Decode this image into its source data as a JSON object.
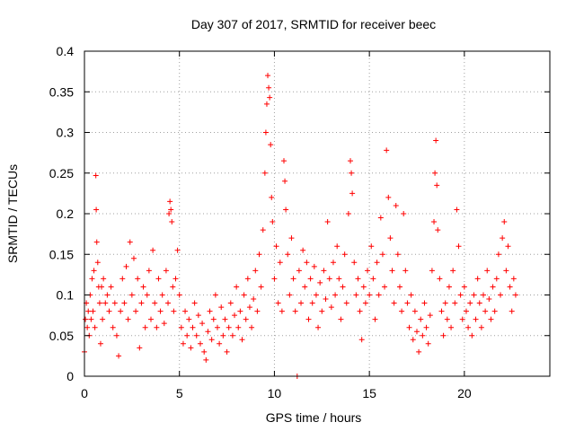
{
  "chart_data": {
    "type": "scatter",
    "title": "Day 307 of 2017, SRMTID for receiver beec",
    "xlabel": "GPS time / hours",
    "ylabel": "SRMTID / TECUs",
    "xlim": [
      0,
      24.5
    ],
    "ylim": [
      0,
      0.4
    ],
    "xticks": [
      0,
      5,
      10,
      15,
      20
    ],
    "xtick_labels": [
      "0",
      "5",
      "10",
      "15",
      "20"
    ],
    "yticks": [
      0,
      0.05,
      0.1,
      0.15,
      0.2,
      0.25,
      0.3,
      0.35,
      0.4
    ],
    "ytick_labels": [
      "0",
      "0.05",
      "0.1",
      "0.15",
      "0.2",
      "0.25",
      "0.3",
      "0.35",
      "0.4"
    ],
    "grid": true,
    "marker": "plus",
    "color": "#ff0000",
    "series": [
      {
        "name": "SRMTID",
        "points": [
          [
            0.0,
            0.03
          ],
          [
            0.05,
            0.07
          ],
          [
            0.1,
            0.09
          ],
          [
            0.15,
            0.06
          ],
          [
            0.2,
            0.08
          ],
          [
            0.25,
            0.05
          ],
          [
            0.3,
            0.1
          ],
          [
            0.35,
            0.07
          ],
          [
            0.4,
            0.12
          ],
          [
            0.45,
            0.08
          ],
          [
            0.5,
            0.13
          ],
          [
            0.55,
            0.06
          ],
          [
            0.6,
            0.247
          ],
          [
            0.62,
            0.205
          ],
          [
            0.65,
            0.165
          ],
          [
            0.7,
            0.14
          ],
          [
            0.75,
            0.11
          ],
          [
            0.8,
            0.09
          ],
          [
            0.85,
            0.04
          ],
          [
            0.9,
            0.11
          ],
          [
            0.95,
            0.07
          ],
          [
            1.0,
            0.12
          ],
          [
            1.1,
            0.09
          ],
          [
            1.2,
            0.1
          ],
          [
            1.3,
            0.08
          ],
          [
            1.4,
            0.11
          ],
          [
            1.5,
            0.06
          ],
          [
            1.6,
            0.09
          ],
          [
            1.7,
            0.05
          ],
          [
            1.8,
            0.025
          ],
          [
            1.9,
            0.08
          ],
          [
            2.0,
            0.12
          ],
          [
            2.1,
            0.09
          ],
          [
            2.2,
            0.135
          ],
          [
            2.3,
            0.07
          ],
          [
            2.4,
            0.165
          ],
          [
            2.5,
            0.1
          ],
          [
            2.6,
            0.145
          ],
          [
            2.7,
            0.08
          ],
          [
            2.8,
            0.12
          ],
          [
            2.9,
            0.035
          ],
          [
            3.0,
            0.09
          ],
          [
            3.1,
            0.11
          ],
          [
            3.2,
            0.06
          ],
          [
            3.3,
            0.1
          ],
          [
            3.4,
            0.13
          ],
          [
            3.5,
            0.07
          ],
          [
            3.6,
            0.155
          ],
          [
            3.7,
            0.09
          ],
          [
            3.8,
            0.06
          ],
          [
            3.9,
            0.12
          ],
          [
            4.0,
            0.08
          ],
          [
            4.1,
            0.1
          ],
          [
            4.2,
            0.065
          ],
          [
            4.3,
            0.13
          ],
          [
            4.4,
            0.09
          ],
          [
            4.45,
            0.2
          ],
          [
            4.5,
            0.215
          ],
          [
            4.55,
            0.205
          ],
          [
            4.6,
            0.19
          ],
          [
            4.65,
            0.11
          ],
          [
            4.7,
            0.08
          ],
          [
            4.8,
            0.12
          ],
          [
            4.9,
            0.155
          ],
          [
            5.0,
            0.1
          ],
          [
            5.1,
            0.06
          ],
          [
            5.2,
            0.04
          ],
          [
            5.3,
            0.08
          ],
          [
            5.4,
            0.05
          ],
          [
            5.5,
            0.07
          ],
          [
            5.6,
            0.035
          ],
          [
            5.7,
            0.06
          ],
          [
            5.8,
            0.09
          ],
          [
            5.9,
            0.05
          ],
          [
            6.0,
            0.075
          ],
          [
            6.1,
            0.04
          ],
          [
            6.2,
            0.065
          ],
          [
            6.3,
            0.03
          ],
          [
            6.4,
            0.02
          ],
          [
            6.5,
            0.055
          ],
          [
            6.6,
            0.08
          ],
          [
            6.7,
            0.045
          ],
          [
            6.8,
            0.07
          ],
          [
            6.9,
            0.1
          ],
          [
            7.0,
            0.06
          ],
          [
            7.1,
            0.04
          ],
          [
            7.2,
            0.085
          ],
          [
            7.3,
            0.05
          ],
          [
            7.4,
            0.07
          ],
          [
            7.5,
            0.03
          ],
          [
            7.6,
            0.06
          ],
          [
            7.7,
            0.09
          ],
          [
            7.8,
            0.05
          ],
          [
            7.9,
            0.075
          ],
          [
            8.0,
            0.11
          ],
          [
            8.1,
            0.06
          ],
          [
            8.2,
            0.08
          ],
          [
            8.3,
            0.045
          ],
          [
            8.4,
            0.1
          ],
          [
            8.5,
            0.07
          ],
          [
            8.6,
            0.12
          ],
          [
            8.7,
            0.085
          ],
          [
            8.8,
            0.06
          ],
          [
            8.9,
            0.095
          ],
          [
            9.0,
            0.13
          ],
          [
            9.1,
            0.08
          ],
          [
            9.2,
            0.15
          ],
          [
            9.3,
            0.11
          ],
          [
            9.4,
            0.18
          ],
          [
            9.5,
            0.25
          ],
          [
            9.55,
            0.3
          ],
          [
            9.6,
            0.335
          ],
          [
            9.65,
            0.37
          ],
          [
            9.7,
            0.355
          ],
          [
            9.75,
            0.343
          ],
          [
            9.8,
            0.285
          ],
          [
            9.85,
            0.22
          ],
          [
            9.9,
            0.19
          ],
          [
            10.0,
            0.12
          ],
          [
            10.1,
            0.16
          ],
          [
            10.2,
            0.09
          ],
          [
            10.3,
            0.14
          ],
          [
            10.4,
            0.08
          ],
          [
            10.5,
            0.265
          ],
          [
            10.55,
            0.24
          ],
          [
            10.6,
            0.205
          ],
          [
            10.7,
            0.15
          ],
          [
            10.8,
            0.1
          ],
          [
            10.9,
            0.17
          ],
          [
            11.0,
            0.12
          ],
          [
            11.1,
            0.08
          ],
          [
            11.2,
            0.0
          ],
          [
            11.3,
            0.13
          ],
          [
            11.4,
            0.09
          ],
          [
            11.5,
            0.155
          ],
          [
            11.6,
            0.11
          ],
          [
            11.7,
            0.14
          ],
          [
            11.8,
            0.07
          ],
          [
            11.9,
            0.12
          ],
          [
            12.0,
            0.09
          ],
          [
            12.1,
            0.135
          ],
          [
            12.2,
            0.1
          ],
          [
            12.3,
            0.06
          ],
          [
            12.4,
            0.115
          ],
          [
            12.5,
            0.08
          ],
          [
            12.6,
            0.13
          ],
          [
            12.7,
            0.095
          ],
          [
            12.8,
            0.19
          ],
          [
            12.9,
            0.12
          ],
          [
            13.0,
            0.085
          ],
          [
            13.1,
            0.14
          ],
          [
            13.2,
            0.1
          ],
          [
            13.3,
            0.16
          ],
          [
            13.4,
            0.12
          ],
          [
            13.5,
            0.07
          ],
          [
            13.6,
            0.11
          ],
          [
            13.7,
            0.15
          ],
          [
            13.8,
            0.09
          ],
          [
            13.9,
            0.2
          ],
          [
            14.0,
            0.265
          ],
          [
            14.05,
            0.25
          ],
          [
            14.1,
            0.225
          ],
          [
            14.2,
            0.14
          ],
          [
            14.3,
            0.1
          ],
          [
            14.4,
            0.12
          ],
          [
            14.5,
            0.08
          ],
          [
            14.6,
            0.045
          ],
          [
            14.7,
            0.11
          ],
          [
            14.8,
            0.09
          ],
          [
            14.9,
            0.13
          ],
          [
            15.0,
            0.1
          ],
          [
            15.1,
            0.16
          ],
          [
            15.2,
            0.12
          ],
          [
            15.3,
            0.07
          ],
          [
            15.4,
            0.14
          ],
          [
            15.5,
            0.1
          ],
          [
            15.6,
            0.195
          ],
          [
            15.7,
            0.15
          ],
          [
            15.8,
            0.11
          ],
          [
            15.9,
            0.278
          ],
          [
            16.0,
            0.22
          ],
          [
            16.1,
            0.17
          ],
          [
            16.2,
            0.13
          ],
          [
            16.3,
            0.09
          ],
          [
            16.4,
            0.21
          ],
          [
            16.5,
            0.15
          ],
          [
            16.6,
            0.11
          ],
          [
            16.7,
            0.08
          ],
          [
            16.8,
            0.2
          ],
          [
            16.9,
            0.13
          ],
          [
            17.0,
            0.09
          ],
          [
            17.1,
            0.06
          ],
          [
            17.2,
            0.1
          ],
          [
            17.3,
            0.045
          ],
          [
            17.4,
            0.08
          ],
          [
            17.5,
            0.055
          ],
          [
            17.6,
            0.03
          ],
          [
            17.7,
            0.07
          ],
          [
            17.8,
            0.05
          ],
          [
            17.9,
            0.09
          ],
          [
            18.0,
            0.06
          ],
          [
            18.1,
            0.04
          ],
          [
            18.2,
            0.075
          ],
          [
            18.3,
            0.13
          ],
          [
            18.4,
            0.19
          ],
          [
            18.45,
            0.25
          ],
          [
            18.5,
            0.29
          ],
          [
            18.55,
            0.235
          ],
          [
            18.6,
            0.18
          ],
          [
            18.7,
            0.12
          ],
          [
            18.8,
            0.08
          ],
          [
            18.9,
            0.05
          ],
          [
            19.0,
            0.09
          ],
          [
            19.1,
            0.07
          ],
          [
            19.2,
            0.11
          ],
          [
            19.3,
            0.06
          ],
          [
            19.4,
            0.13
          ],
          [
            19.5,
            0.09
          ],
          [
            19.6,
            0.205
          ],
          [
            19.7,
            0.16
          ],
          [
            19.8,
            0.1
          ],
          [
            19.9,
            0.07
          ],
          [
            20.0,
            0.11
          ],
          [
            20.1,
            0.08
          ],
          [
            20.2,
            0.06
          ],
          [
            20.3,
            0.09
          ],
          [
            20.4,
            0.05
          ],
          [
            20.5,
            0.1
          ],
          [
            20.6,
            0.07
          ],
          [
            20.7,
            0.12
          ],
          [
            20.8,
            0.09
          ],
          [
            20.9,
            0.06
          ],
          [
            21.0,
            0.1
          ],
          [
            21.1,
            0.08
          ],
          [
            21.2,
            0.13
          ],
          [
            21.3,
            0.095
          ],
          [
            21.4,
            0.07
          ],
          [
            21.5,
            0.11
          ],
          [
            21.6,
            0.08
          ],
          [
            21.7,
            0.12
          ],
          [
            21.8,
            0.15
          ],
          [
            21.9,
            0.1
          ],
          [
            22.0,
            0.17
          ],
          [
            22.1,
            0.19
          ],
          [
            22.2,
            0.13
          ],
          [
            22.3,
            0.16
          ],
          [
            22.4,
            0.11
          ],
          [
            22.5,
            0.08
          ],
          [
            22.6,
            0.12
          ],
          [
            22.7,
            0.1
          ]
        ]
      }
    ]
  }
}
